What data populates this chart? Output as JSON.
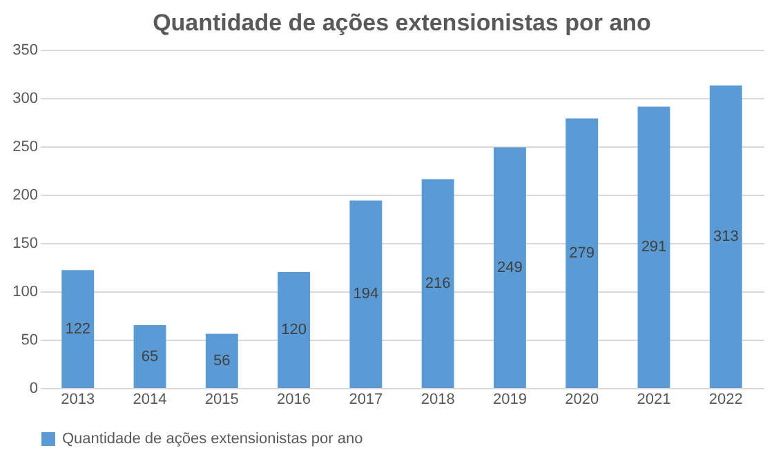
{
  "chart_data": {
    "type": "bar",
    "title": "Quantidade de ações extensionistas por ano",
    "categories": [
      "2013",
      "2014",
      "2015",
      "2016",
      "2017",
      "2018",
      "2019",
      "2020",
      "2021",
      "2022"
    ],
    "series": [
      {
        "name": "Quantidade de ações extensionistas por ano",
        "color": "#5b9bd5",
        "values": [
          122,
          65,
          56,
          120,
          194,
          216,
          249,
          279,
          291,
          313
        ]
      }
    ],
    "ylim": [
      0,
      350
    ],
    "yticks": [
      0,
      50,
      100,
      150,
      200,
      250,
      300,
      350
    ],
    "grid": "y",
    "legend": "bottom",
    "data_labels": true
  }
}
